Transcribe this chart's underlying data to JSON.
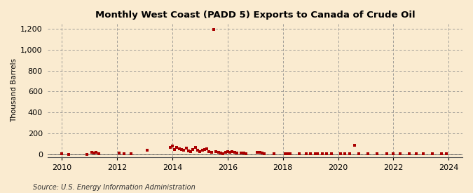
{
  "title": "Monthly West Coast (PADD 5) Exports to Canada of Crude Oil",
  "ylabel": "Thousand Barrels",
  "source": "Source: U.S. Energy Information Administration",
  "background_color": "#faebd0",
  "plot_bg_color": "#faebd0",
  "marker_color": "#aa0000",
  "ylim": [
    -30,
    1250
  ],
  "yticks": [
    0,
    200,
    400,
    600,
    800,
    1000,
    1200
  ],
  "xlim": [
    2009.5,
    2024.5
  ],
  "xticks": [
    2010,
    2012,
    2014,
    2016,
    2018,
    2020,
    2022,
    2024
  ],
  "data": [
    [
      2010.0,
      4
    ],
    [
      2010.25,
      3
    ],
    [
      2010.917,
      2
    ],
    [
      2011.083,
      18
    ],
    [
      2011.167,
      14
    ],
    [
      2011.25,
      20
    ],
    [
      2011.333,
      6
    ],
    [
      2012.083,
      12
    ],
    [
      2012.25,
      8
    ],
    [
      2012.5,
      5
    ],
    [
      2013.083,
      40
    ],
    [
      2013.917,
      65
    ],
    [
      2014.0,
      80
    ],
    [
      2014.083,
      50
    ],
    [
      2014.167,
      70
    ],
    [
      2014.25,
      55
    ],
    [
      2014.333,
      45
    ],
    [
      2014.417,
      40
    ],
    [
      2014.5,
      60
    ],
    [
      2014.583,
      35
    ],
    [
      2014.667,
      30
    ],
    [
      2014.75,
      50
    ],
    [
      2014.833,
      65
    ],
    [
      2014.917,
      40
    ],
    [
      2015.0,
      28
    ],
    [
      2015.083,
      38
    ],
    [
      2015.167,
      50
    ],
    [
      2015.25,
      55
    ],
    [
      2015.333,
      30
    ],
    [
      2015.417,
      22
    ],
    [
      2015.5,
      1190
    ],
    [
      2015.583,
      28
    ],
    [
      2015.667,
      18
    ],
    [
      2015.75,
      12
    ],
    [
      2015.833,
      8
    ],
    [
      2015.917,
      22
    ],
    [
      2016.0,
      30
    ],
    [
      2016.083,
      18
    ],
    [
      2016.167,
      25
    ],
    [
      2016.25,
      20
    ],
    [
      2016.333,
      12
    ],
    [
      2016.5,
      15
    ],
    [
      2016.583,
      10
    ],
    [
      2016.667,
      4
    ],
    [
      2017.083,
      22
    ],
    [
      2017.167,
      18
    ],
    [
      2017.25,
      12
    ],
    [
      2017.333,
      8
    ],
    [
      2017.667,
      4
    ],
    [
      2018.083,
      4
    ],
    [
      2018.167,
      6
    ],
    [
      2018.25,
      4
    ],
    [
      2018.583,
      4
    ],
    [
      2018.833,
      4
    ],
    [
      2019.0,
      4
    ],
    [
      2019.167,
      4
    ],
    [
      2019.25,
      6
    ],
    [
      2019.417,
      4
    ],
    [
      2019.583,
      4
    ],
    [
      2019.75,
      4
    ],
    [
      2020.083,
      4
    ],
    [
      2020.25,
      4
    ],
    [
      2020.417,
      4
    ],
    [
      2020.583,
      85
    ],
    [
      2020.75,
      4
    ],
    [
      2021.083,
      4
    ],
    [
      2021.417,
      4
    ],
    [
      2021.75,
      4
    ],
    [
      2022.0,
      4
    ],
    [
      2022.25,
      4
    ],
    [
      2022.583,
      4
    ],
    [
      2022.833,
      4
    ],
    [
      2023.083,
      4
    ],
    [
      2023.417,
      4
    ],
    [
      2023.75,
      4
    ],
    [
      2023.917,
      4
    ]
  ]
}
